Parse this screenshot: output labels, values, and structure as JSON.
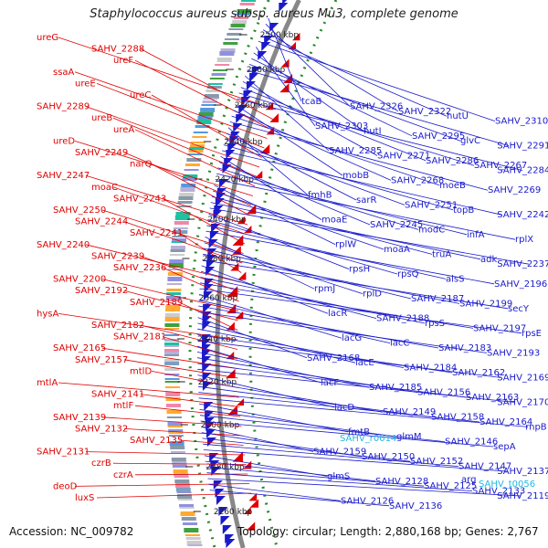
{
  "title": "Staphylococcus aureus subsp. aureus Mu3, complete genome",
  "footer": {
    "accession_label": "Accession:",
    "accession": "NC_009782",
    "topology_label": "Topology:",
    "topology": "circular",
    "length_label": "Length:",
    "length": "2,880,168 bp",
    "genes_label": "Genes:",
    "genes": "2,767"
  },
  "colors": {
    "forward_gene": "#e00000",
    "reverse_gene": "#1a1acc",
    "rna_gene": "#22b8e0",
    "backbone": "#888888",
    "gc_dots": "#2a8a2a"
  },
  "scale_ticks": [
    "2260 kbp",
    "2280 kbp",
    "2300 kbp",
    "2320 kbp",
    "2340 kbp",
    "2360 kbp",
    "2380 kbp",
    "2400 kbp",
    "2420 kbp",
    "2440 kbp",
    "2460 kbp",
    "2480 kbp",
    "2500 kbp"
  ],
  "forward_labels": [
    "ureG",
    "SAHV_2288",
    "ureF",
    "ssaA",
    "ureE",
    "ureC",
    "SAHV_2289",
    "ureB",
    "ureA",
    "ureD",
    "SAHV_2249",
    "narQ",
    "SAHV_2247",
    "moaC",
    "SAHV_2243",
    "SAHV_2250",
    "SAHV_2244",
    "SAHV_2241",
    "SAHV_2240",
    "SAHV_2239",
    "SAHV_2236",
    "SAHV_2200",
    "SAHV_2192",
    "SAHV_2189",
    "hysA",
    "SAHV_2182",
    "SAHV_2181",
    "SAHV_2165",
    "SAHV_2157",
    "mtlD",
    "mtlA",
    "SAHV_2141",
    "mtlF",
    "SAHV_2139",
    "SAHV_2132",
    "SAHV_2135",
    "SAHV_2131",
    "czrB",
    "czrA",
    "deoD",
    "luxS"
  ],
  "reverse_labels": [
    "tcaB",
    "SAHV_2326",
    "SAHV_2322",
    "hutU",
    "SAHV_2310",
    "SAHV_2303",
    "hutI",
    "SAHV_2295",
    "glvC",
    "SAHV_2291",
    "SAHV_2285",
    "SAHV_2271",
    "SAHV_2286",
    "SAHV_2267",
    "SAHV_2284",
    "mobB",
    "SAHV_2268",
    "moeB",
    "SAHV_2269",
    "fmhB",
    "sarR",
    "SAHV_2251",
    "topB",
    "SAHV_2242",
    "moaE",
    "SAHV_2245",
    "modC",
    "infA",
    "rplX",
    "rplW",
    "moaA",
    "truA",
    "adk",
    "SAHV_2237",
    "rpsH",
    "rpsQ",
    "alsS",
    "SAHV_2196",
    "rpmJ",
    "rplD",
    "SAHV_2187",
    "SAHV_2199",
    "secY",
    "lacR",
    "SAHV_2188",
    "rpsS",
    "SAHV_2197",
    "rpsE",
    "lacG",
    "lacC",
    "SAHV_2183",
    "SAHV_2193",
    "SAHV_2168",
    "lacE",
    "SAHV_2184",
    "SAHV_2162",
    "SAHV_2169",
    "lacF",
    "SAHV_2185",
    "SAHV_2156",
    "SAHV_2163",
    "SAHV_2170",
    "lacD",
    "SAHV_2149",
    "SAHV_2158",
    "SAHV_2164",
    "rnpB",
    "fmtB",
    "glmM",
    "SAHV_2146",
    "sepA",
    "SAHV_2159",
    "SAHV_2150",
    "SAHV_2152",
    "SAHV_2147",
    "SAHV_2137",
    "glmS",
    "SAHV_2128",
    "SAHV_2125",
    "SAHV_2133",
    "SAHV_2119",
    "SAHV_2126",
    "SAHV_2136"
  ],
  "rna_labels": [
    "SAHV_r0014",
    "arg",
    "SAHV_t0056"
  ]
}
